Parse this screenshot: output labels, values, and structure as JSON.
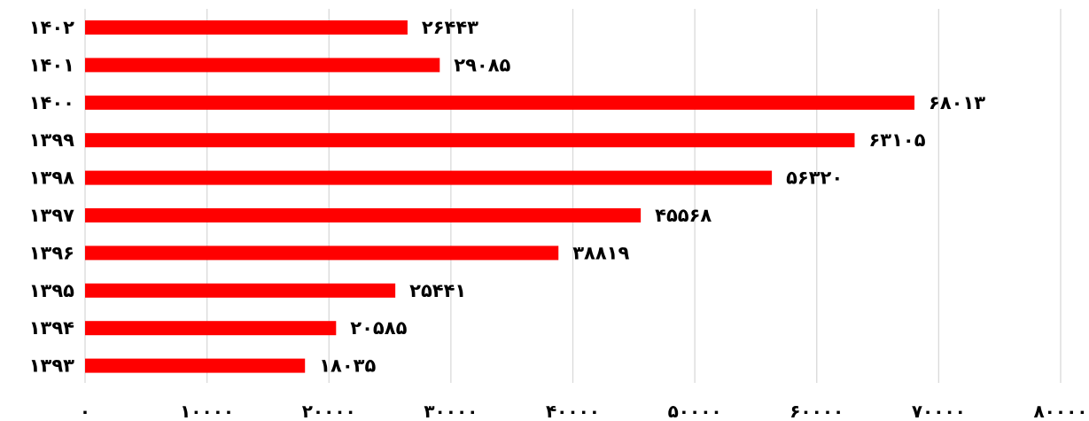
{
  "colors": {
    "bar": "#ff0000",
    "grid": "#d9d9d9",
    "text": "#000000"
  },
  "chart_data": {
    "type": "bar",
    "orientation": "horizontal",
    "title": "",
    "xlabel": "",
    "ylabel": "",
    "grid": "vertical",
    "legend": "none",
    "xlim": [
      0,
      80000
    ],
    "x_ticks": [
      0,
      10000,
      20000,
      30000,
      40000,
      50000,
      60000,
      70000,
      80000
    ],
    "x_tick_labels": [
      "۰",
      "۱۰۰۰۰",
      "۲۰۰۰۰",
      "۳۰۰۰۰",
      "۴۰۰۰۰",
      "۵۰۰۰۰",
      "۶۰۰۰۰",
      "۷۰۰۰۰",
      "۸۰۰۰۰"
    ],
    "categories": [
      "۱۴۰۲",
      "۱۴۰۱",
      "۱۴۰۰",
      "۱۳۹۹",
      "۱۳۹۸",
      "۱۳۹۷",
      "۱۳۹۶",
      "۱۳۹۵",
      "۱۳۹۴",
      "۱۳۹۳"
    ],
    "values": [
      26443,
      29085,
      68013,
      63105,
      56320,
      45568,
      38819,
      25441,
      20585,
      18035
    ],
    "data_labels": [
      "۲۶۴۴۳",
      "۲۹۰۸۵",
      "۶۸۰۱۳",
      "۶۳۱۰۵",
      "۵۶۳۲۰",
      "۴۵۵۶۸",
      "۳۸۸۱۹",
      "۲۵۴۴۱",
      "۲۰۵۸۵",
      "۱۸۰۳۵"
    ]
  }
}
